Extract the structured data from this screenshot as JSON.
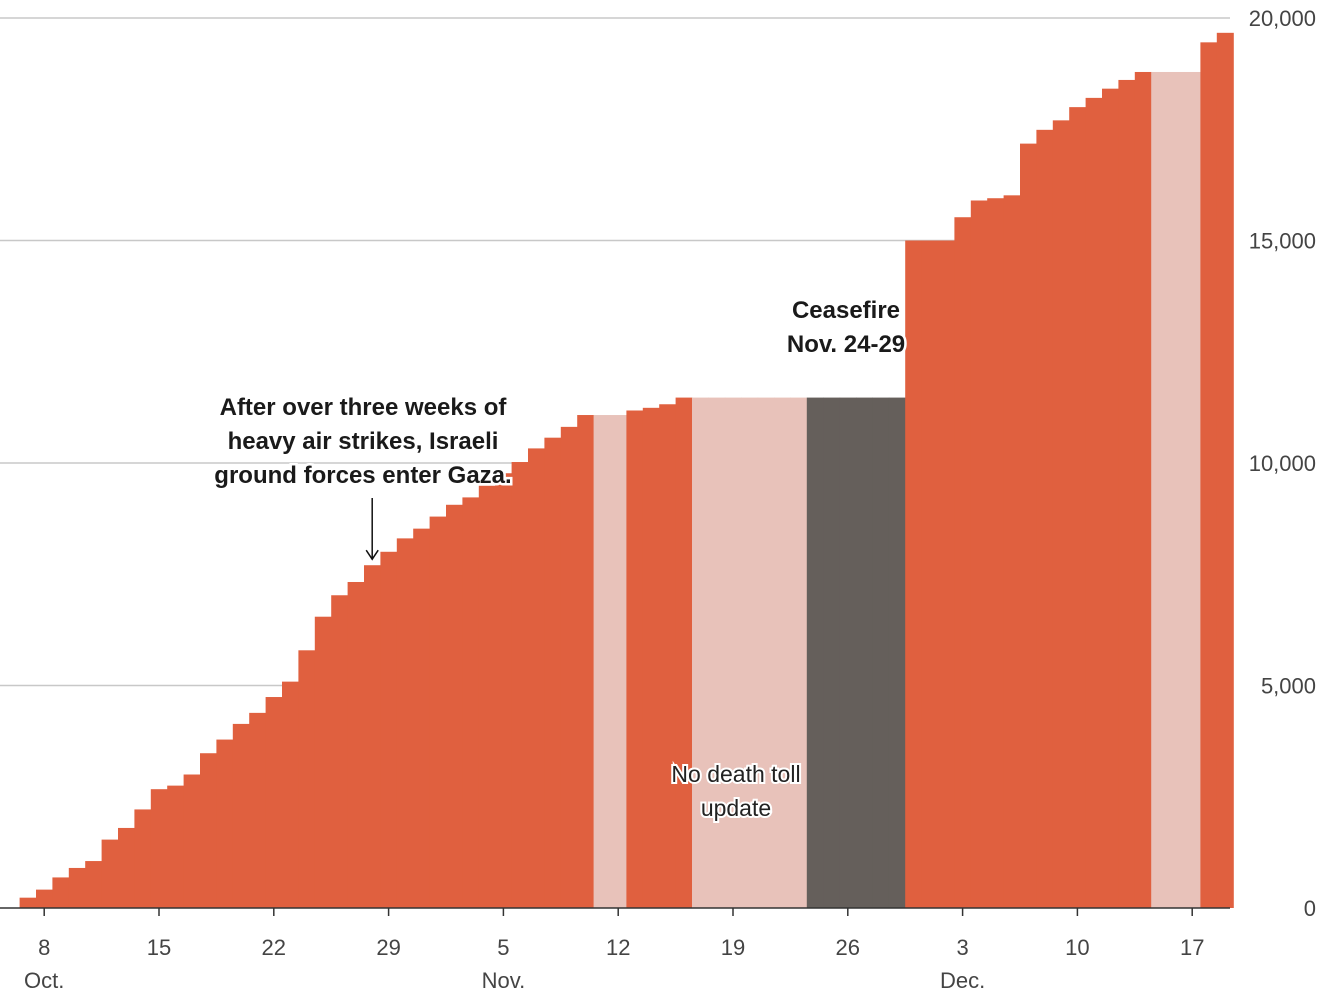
{
  "chart_data": {
    "type": "bar",
    "x_unit": "date (2023)",
    "days": [
      {
        "date": "Oct. 7",
        "value": 232,
        "status": "reported"
      },
      {
        "date": "Oct. 8",
        "value": 413,
        "status": "reported"
      },
      {
        "date": "Oct. 9",
        "value": 687,
        "status": "reported"
      },
      {
        "date": "Oct. 10",
        "value": 900,
        "status": "reported"
      },
      {
        "date": "Oct. 11",
        "value": 1055,
        "status": "reported"
      },
      {
        "date": "Oct. 12",
        "value": 1537,
        "status": "reported"
      },
      {
        "date": "Oct. 13",
        "value": 1799,
        "status": "reported"
      },
      {
        "date": "Oct. 14",
        "value": 2215,
        "status": "reported"
      },
      {
        "date": "Oct. 15",
        "value": 2670,
        "status": "reported"
      },
      {
        "date": "Oct. 16",
        "value": 2750,
        "status": "reported"
      },
      {
        "date": "Oct. 17",
        "value": 3000,
        "status": "reported"
      },
      {
        "date": "Oct. 18",
        "value": 3478,
        "status": "reported"
      },
      {
        "date": "Oct. 19",
        "value": 3785,
        "status": "reported"
      },
      {
        "date": "Oct. 20",
        "value": 4137,
        "status": "reported"
      },
      {
        "date": "Oct. 21",
        "value": 4385,
        "status": "reported"
      },
      {
        "date": "Oct. 22",
        "value": 4741,
        "status": "reported"
      },
      {
        "date": "Oct. 23",
        "value": 5087,
        "status": "reported"
      },
      {
        "date": "Oct. 24",
        "value": 5791,
        "status": "reported"
      },
      {
        "date": "Oct. 25",
        "value": 6546,
        "status": "reported"
      },
      {
        "date": "Oct. 26",
        "value": 7028,
        "status": "reported"
      },
      {
        "date": "Oct. 27",
        "value": 7326,
        "status": "reported"
      },
      {
        "date": "Oct. 28",
        "value": 7703,
        "status": "reported"
      },
      {
        "date": "Oct. 29",
        "value": 8005,
        "status": "reported"
      },
      {
        "date": "Oct. 30",
        "value": 8306,
        "status": "reported"
      },
      {
        "date": "Oct. 31",
        "value": 8525,
        "status": "reported"
      },
      {
        "date": "Nov. 1",
        "value": 8796,
        "status": "reported"
      },
      {
        "date": "Nov. 2",
        "value": 9061,
        "status": "reported"
      },
      {
        "date": "Nov. 3",
        "value": 9227,
        "status": "reported"
      },
      {
        "date": "Nov. 4",
        "value": 9488,
        "status": "reported"
      },
      {
        "date": "Nov. 5",
        "value": 9770,
        "status": "reported"
      },
      {
        "date": "Nov. 6",
        "value": 10022,
        "status": "reported"
      },
      {
        "date": "Nov. 7",
        "value": 10328,
        "status": "reported"
      },
      {
        "date": "Nov. 8",
        "value": 10569,
        "status": "reported"
      },
      {
        "date": "Nov. 9",
        "value": 10812,
        "status": "reported"
      },
      {
        "date": "Nov. 10",
        "value": 11078,
        "status": "reported"
      },
      {
        "date": "Nov. 11",
        "value": 11078,
        "status": "no_update"
      },
      {
        "date": "Nov. 12",
        "value": 11078,
        "status": "no_update"
      },
      {
        "date": "Nov. 13",
        "value": 11180,
        "status": "reported"
      },
      {
        "date": "Nov. 14",
        "value": 11240,
        "status": "reported"
      },
      {
        "date": "Nov. 15",
        "value": 11320,
        "status": "reported"
      },
      {
        "date": "Nov. 16",
        "value": 11470,
        "status": "reported"
      },
      {
        "date": "Nov. 17",
        "value": 11470,
        "status": "no_update"
      },
      {
        "date": "Nov. 18",
        "value": 11470,
        "status": "no_update"
      },
      {
        "date": "Nov. 19",
        "value": 11470,
        "status": "no_update"
      },
      {
        "date": "Nov. 20",
        "value": 11470,
        "status": "no_update"
      },
      {
        "date": "Nov. 21",
        "value": 11470,
        "status": "no_update"
      },
      {
        "date": "Nov. 22",
        "value": 11470,
        "status": "no_update"
      },
      {
        "date": "Nov. 23",
        "value": 11470,
        "status": "no_update"
      },
      {
        "date": "Nov. 24",
        "value": 11470,
        "status": "ceasefire"
      },
      {
        "date": "Nov. 25",
        "value": 11470,
        "status": "ceasefire"
      },
      {
        "date": "Nov. 26",
        "value": 11470,
        "status": "ceasefire"
      },
      {
        "date": "Nov. 27",
        "value": 11470,
        "status": "ceasefire"
      },
      {
        "date": "Nov. 28",
        "value": 11470,
        "status": "ceasefire"
      },
      {
        "date": "Nov. 29",
        "value": 11470,
        "status": "ceasefire"
      },
      {
        "date": "Nov. 30",
        "value": 15000,
        "status": "reported"
      },
      {
        "date": "Dec. 1",
        "value": 15000,
        "status": "reported"
      },
      {
        "date": "Dec. 2",
        "value": 15000,
        "status": "reported"
      },
      {
        "date": "Dec. 3",
        "value": 15523,
        "status": "reported"
      },
      {
        "date": "Dec. 4",
        "value": 15899,
        "status": "reported"
      },
      {
        "date": "Dec. 5",
        "value": 15950,
        "status": "reported"
      },
      {
        "date": "Dec. 6",
        "value": 16015,
        "status": "reported"
      },
      {
        "date": "Dec. 7",
        "value": 17177,
        "status": "reported"
      },
      {
        "date": "Dec. 8",
        "value": 17487,
        "status": "reported"
      },
      {
        "date": "Dec. 9",
        "value": 17700,
        "status": "reported"
      },
      {
        "date": "Dec. 10",
        "value": 17997,
        "status": "reported"
      },
      {
        "date": "Dec. 11",
        "value": 18205,
        "status": "reported"
      },
      {
        "date": "Dec. 12",
        "value": 18412,
        "status": "reported"
      },
      {
        "date": "Dec. 13",
        "value": 18608,
        "status": "reported"
      },
      {
        "date": "Dec. 14",
        "value": 18787,
        "status": "reported"
      },
      {
        "date": "Dec. 15",
        "value": 18787,
        "status": "no_update"
      },
      {
        "date": "Dec. 16",
        "value": 18787,
        "status": "no_update"
      },
      {
        "date": "Dec. 17",
        "value": 18787,
        "status": "no_update"
      },
      {
        "date": "Dec. 18",
        "value": 19453,
        "status": "reported"
      },
      {
        "date": "Dec. 19",
        "value": 19667,
        "status": "reported"
      }
    ],
    "y_ticks": [
      0,
      5000,
      10000,
      15000,
      20000
    ],
    "y_tick_labels": [
      "0",
      "5,000",
      "10,000",
      "15,000",
      "20,000"
    ],
    "ylim": [
      0,
      20000
    ],
    "y_axis_side": "right",
    "x_ticks": [
      {
        "date": "Oct. 8",
        "label": "8",
        "month": "Oct."
      },
      {
        "date": "Oct. 15",
        "label": "15",
        "month": ""
      },
      {
        "date": "Oct. 22",
        "label": "22",
        "month": ""
      },
      {
        "date": "Oct. 29",
        "label": "29",
        "month": ""
      },
      {
        "date": "Nov. 5",
        "label": "5",
        "month": "Nov."
      },
      {
        "date": "Nov. 12",
        "label": "12",
        "month": ""
      },
      {
        "date": "Nov. 19",
        "label": "19",
        "month": ""
      },
      {
        "date": "Nov. 26",
        "label": "26",
        "month": ""
      },
      {
        "date": "Dec. 3",
        "label": "3",
        "month": "Dec."
      },
      {
        "date": "Dec. 10",
        "label": "10",
        "month": ""
      },
      {
        "date": "Dec. 17",
        "label": "17",
        "month": ""
      }
    ],
    "grid": true,
    "annotations": [
      {
        "id": "ground",
        "lines": [
          "After over three weeks of",
          "heavy air strikes, Israeli",
          "ground forces enter Gaza."
        ],
        "target_date": "Oct. 28",
        "style": "bold",
        "arrow": true
      },
      {
        "id": "ceasefire",
        "lines": [
          "Ceasefire",
          "Nov. 24-29"
        ],
        "target_date": "Nov. 27",
        "style": "bold",
        "arrow": false
      },
      {
        "id": "no_update",
        "lines": [
          "No death toll",
          "update"
        ],
        "target_date": "Nov. 20",
        "style": "plain",
        "arrow": false
      }
    ],
    "colors": {
      "reported": "#e0603f",
      "no_update": "#e8c2ba",
      "ceasefire": "#655f5b",
      "grid": "#c8c8c8",
      "axis": "#333333"
    }
  }
}
